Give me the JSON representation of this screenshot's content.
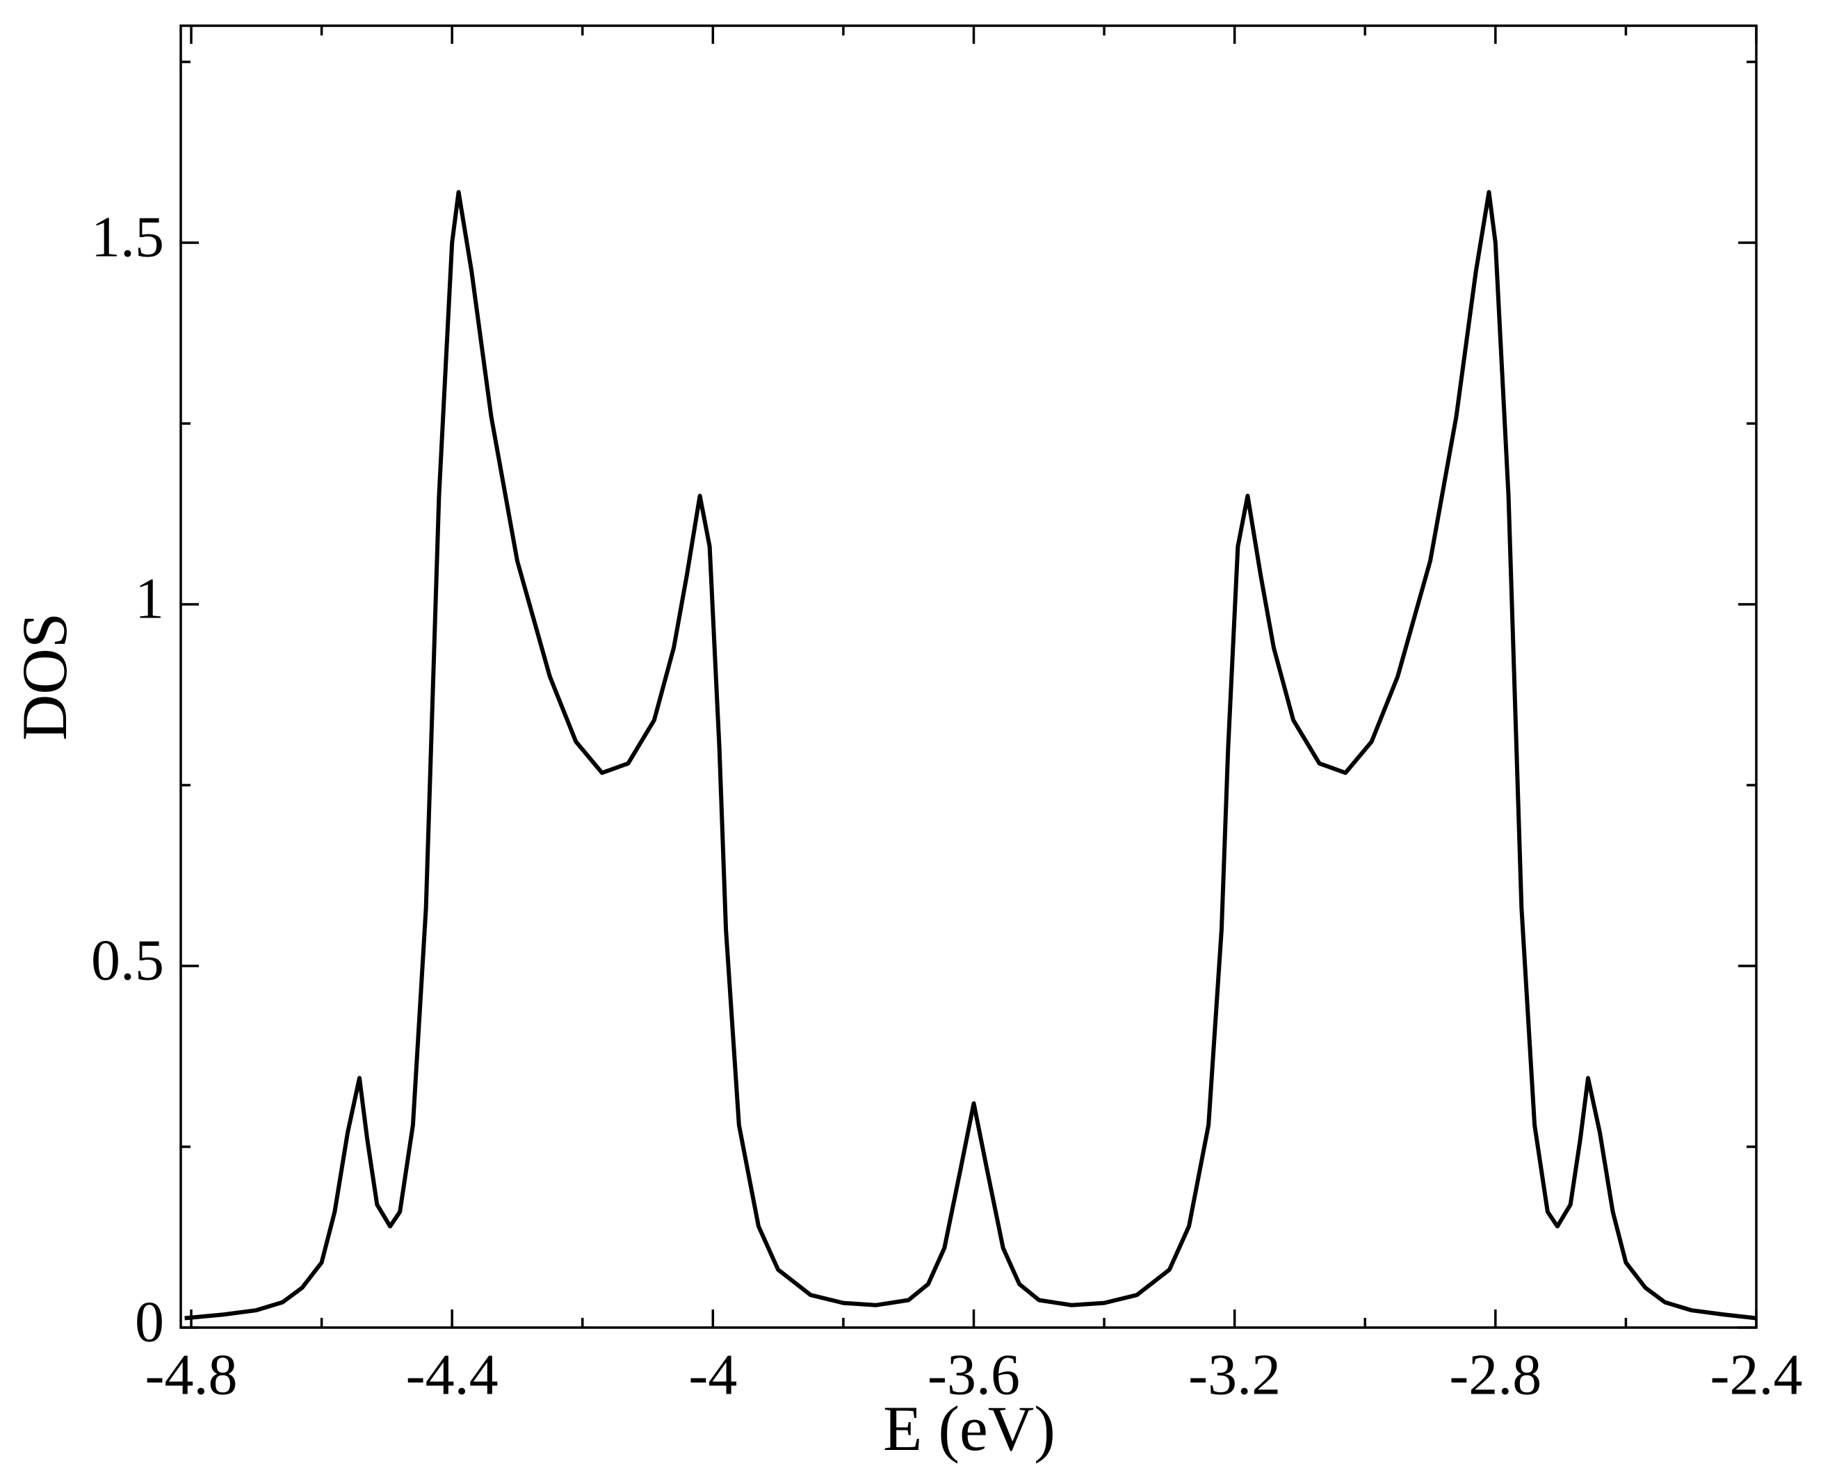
{
  "chart_data": {
    "type": "line",
    "xlabel": "E (eV)",
    "ylabel": "DOS",
    "xlim": [
      -4.816,
      -2.4
    ],
    "ylim": [
      0,
      1.8
    ],
    "xticks": [
      -4.8,
      -4.4,
      -4,
      -3.6,
      -3.2,
      -2.8,
      -2.4
    ],
    "yticks": [
      0,
      0.5,
      1,
      1.5
    ],
    "xminorticks": [
      -4.6,
      -4.2,
      -3.8,
      -3.4,
      -3.0,
      -2.6
    ],
    "yminorticks": [
      0.25,
      0.75,
      1.25,
      1.75
    ],
    "series": [
      {
        "color": "#000000",
        "x": [
          -4.81,
          -4.75,
          -4.7,
          -4.66,
          -4.63,
          -4.6,
          -4.58,
          -4.56,
          -4.542,
          -4.53,
          -4.515,
          -4.495,
          -4.48,
          -4.46,
          -4.44,
          -4.42,
          -4.4,
          -4.39,
          -4.37,
          -4.34,
          -4.3,
          -4.25,
          -4.21,
          -4.17,
          -4.13,
          -4.09,
          -4.06,
          -4.04,
          -4.02,
          -4.005,
          -3.99,
          -3.98,
          -3.96,
          -3.93,
          -3.9,
          -3.85,
          -3.8,
          -3.75,
          -3.7,
          -3.67,
          -3.645,
          -3.62,
          -3.6,
          -3.58,
          -3.555,
          -3.53,
          -3.5,
          -3.45,
          -3.4,
          -3.35,
          -3.3,
          -3.27,
          -3.24,
          -3.22,
          -3.21,
          -3.195,
          -3.18,
          -3.16,
          -3.14,
          -3.11,
          -3.07,
          -3.03,
          -2.99,
          -2.95,
          -2.9,
          -2.86,
          -2.83,
          -2.81,
          -2.8,
          -2.78,
          -2.76,
          -2.74,
          -2.72,
          -2.705,
          -2.685,
          -2.67,
          -2.658,
          -2.64,
          -2.62,
          -2.6,
          -2.57,
          -2.54,
          -2.5,
          -2.45,
          -2.4
        ],
        "values": [
          0.013,
          0.018,
          0.024,
          0.035,
          0.055,
          0.09,
          0.16,
          0.27,
          0.345,
          0.26,
          0.17,
          0.14,
          0.16,
          0.28,
          0.58,
          1.15,
          1.5,
          1.57,
          1.46,
          1.26,
          1.06,
          0.9,
          0.81,
          0.767,
          0.78,
          0.84,
          0.94,
          1.04,
          1.15,
          1.08,
          0.8,
          0.55,
          0.28,
          0.14,
          0.08,
          0.045,
          0.034,
          0.031,
          0.038,
          0.06,
          0.11,
          0.22,
          0.31,
          0.22,
          0.11,
          0.06,
          0.038,
          0.031,
          0.034,
          0.045,
          0.08,
          0.14,
          0.28,
          0.55,
          0.8,
          1.08,
          1.15,
          1.04,
          0.94,
          0.84,
          0.78,
          0.767,
          0.81,
          0.9,
          1.06,
          1.26,
          1.46,
          1.57,
          1.5,
          1.15,
          0.58,
          0.28,
          0.16,
          0.14,
          0.17,
          0.26,
          0.345,
          0.27,
          0.16,
          0.09,
          0.055,
          0.035,
          0.024,
          0.018,
          0.013
        ]
      }
    ]
  }
}
